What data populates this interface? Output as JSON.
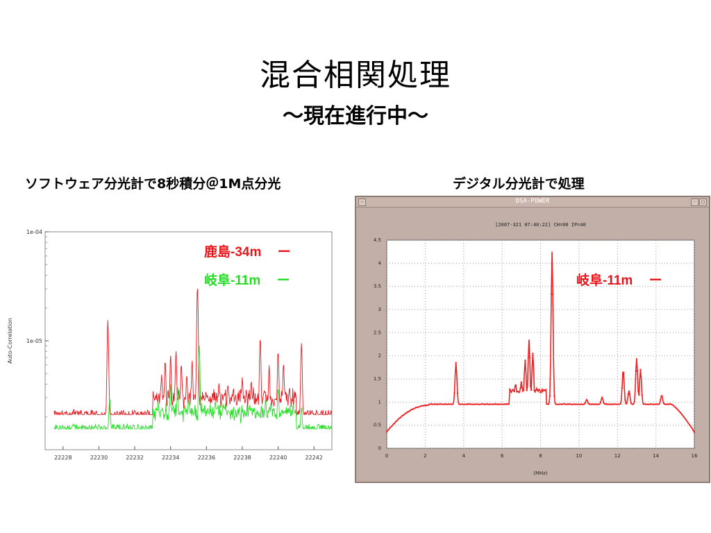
{
  "slide": {
    "title": "混合相関処理",
    "subtitle": "〜現在進行中〜",
    "left_caption": "ソフトウェア分光計で8秒積分＠1M点分光",
    "right_caption": "デジタル分光計で処理"
  },
  "colors": {
    "red": "#e8141a",
    "green": "#22dd22",
    "plot_red": "#ee2222"
  },
  "chart_data": [
    {
      "type": "line",
      "ylabel": "Auto-Correlation",
      "xlabel": "",
      "xlim": [
        22227,
        22243
      ],
      "ylog": true,
      "ytick_labels": [
        "1e-04",
        "1e-05"
      ],
      "xtick_labels": [
        "22228",
        "22230",
        "22232",
        "22234",
        "22236",
        "22238",
        "22240",
        "22242"
      ],
      "xticks": [
        22228,
        22230,
        22232,
        22234,
        22236,
        22238,
        22240,
        22242
      ],
      "legend": [
        {
          "label": "鹿島-34m",
          "mark": "ー",
          "color": "#e8141a"
        },
        {
          "label": "岐阜-11m",
          "mark": "ー",
          "color": "#22dd22"
        }
      ],
      "series": [
        {
          "name": "鹿島-34m",
          "color": "#e8141a",
          "peaks": [
            [
              22230.5,
              1.55e-05
            ],
            [
              22233.5,
              5e-06
            ],
            [
              22233.7,
              7e-06
            ],
            [
              22234.0,
              7.5e-06
            ],
            [
              22234.3,
              8.5e-06
            ],
            [
              22234.6,
              6.5e-06
            ],
            [
              22234.9,
              5e-06
            ],
            [
              22235.2,
              7e-06
            ],
            [
              22235.5,
              3.5e-05
            ],
            [
              22236.7,
              4.5e-06
            ],
            [
              22237.2,
              4e-06
            ],
            [
              22238.0,
              5e-06
            ],
            [
              22238.5,
              4.5e-06
            ],
            [
              22239.0,
              1.1e-05
            ],
            [
              22239.5,
              6e-06
            ],
            [
              22240.0,
              8.5e-06
            ],
            [
              22240.3,
              6.5e-06
            ],
            [
              22241.3,
              1e-05
            ]
          ],
          "baseline": 2.1e-06
        },
        {
          "name": "岐阜-11m",
          "color": "#22dd22",
          "peaks": [
            [
              22230.6,
              3.2e-06
            ],
            [
              22233.3,
              3e-06
            ],
            [
              22234.0,
              4.2e-06
            ],
            [
              22234.4,
              4e-06
            ],
            [
              22235.0,
              3.2e-06
            ],
            [
              22235.6,
              1e-05
            ],
            [
              22236.5,
              2.8e-06
            ],
            [
              22237.2,
              2.4e-06
            ],
            [
              22238.0,
              2.3e-06
            ],
            [
              22239.3,
              3e-06
            ],
            [
              22240.0,
              4e-06
            ],
            [
              22241.3,
              2.5e-06
            ]
          ],
          "baseline": 1.55e-06
        }
      ]
    },
    {
      "type": "line",
      "title": "DSA-POWER",
      "subtitle": "[2007-321 07:40:22] CH=00 IP=40",
      "xlabel": "(MHz)",
      "ylabel": "",
      "xlim": [
        0,
        16
      ],
      "ylim": [
        0,
        4.5
      ],
      "grid": true,
      "xticks": [
        0,
        2,
        4,
        6,
        8,
        10,
        12,
        14,
        16
      ],
      "yticks": [
        0,
        0.5,
        1,
        1.5,
        2,
        2.5,
        3,
        3.5,
        4,
        4.5
      ],
      "ytick_labels": [
        "0",
        "0.5",
        "1",
        "1.5",
        "2",
        "2.5",
        "3",
        "3.5",
        "4",
        "4.5"
      ],
      "legend": [
        {
          "label": "岐阜-11m",
          "mark": "ー",
          "color": "#e8141a"
        }
      ],
      "series": [
        {
          "name": "岐阜-11m",
          "color": "#ee2222",
          "peaks": [
            [
              3.6,
              1.85
            ],
            [
              6.7,
              1.4
            ],
            [
              7.0,
              1.45
            ],
            [
              7.2,
              1.9
            ],
            [
              7.4,
              2.35
            ],
            [
              7.6,
              2.05
            ],
            [
              7.8,
              1.3
            ],
            [
              8.1,
              1.25
            ],
            [
              8.6,
              4.25
            ],
            [
              10.4,
              1.05
            ],
            [
              11.2,
              1.1
            ],
            [
              12.3,
              1.7
            ],
            [
              12.6,
              1.25
            ],
            [
              13.0,
              1.95
            ],
            [
              13.2,
              1.7
            ],
            [
              14.3,
              1.15
            ]
          ],
          "baseline": 0.95
        }
      ]
    }
  ]
}
